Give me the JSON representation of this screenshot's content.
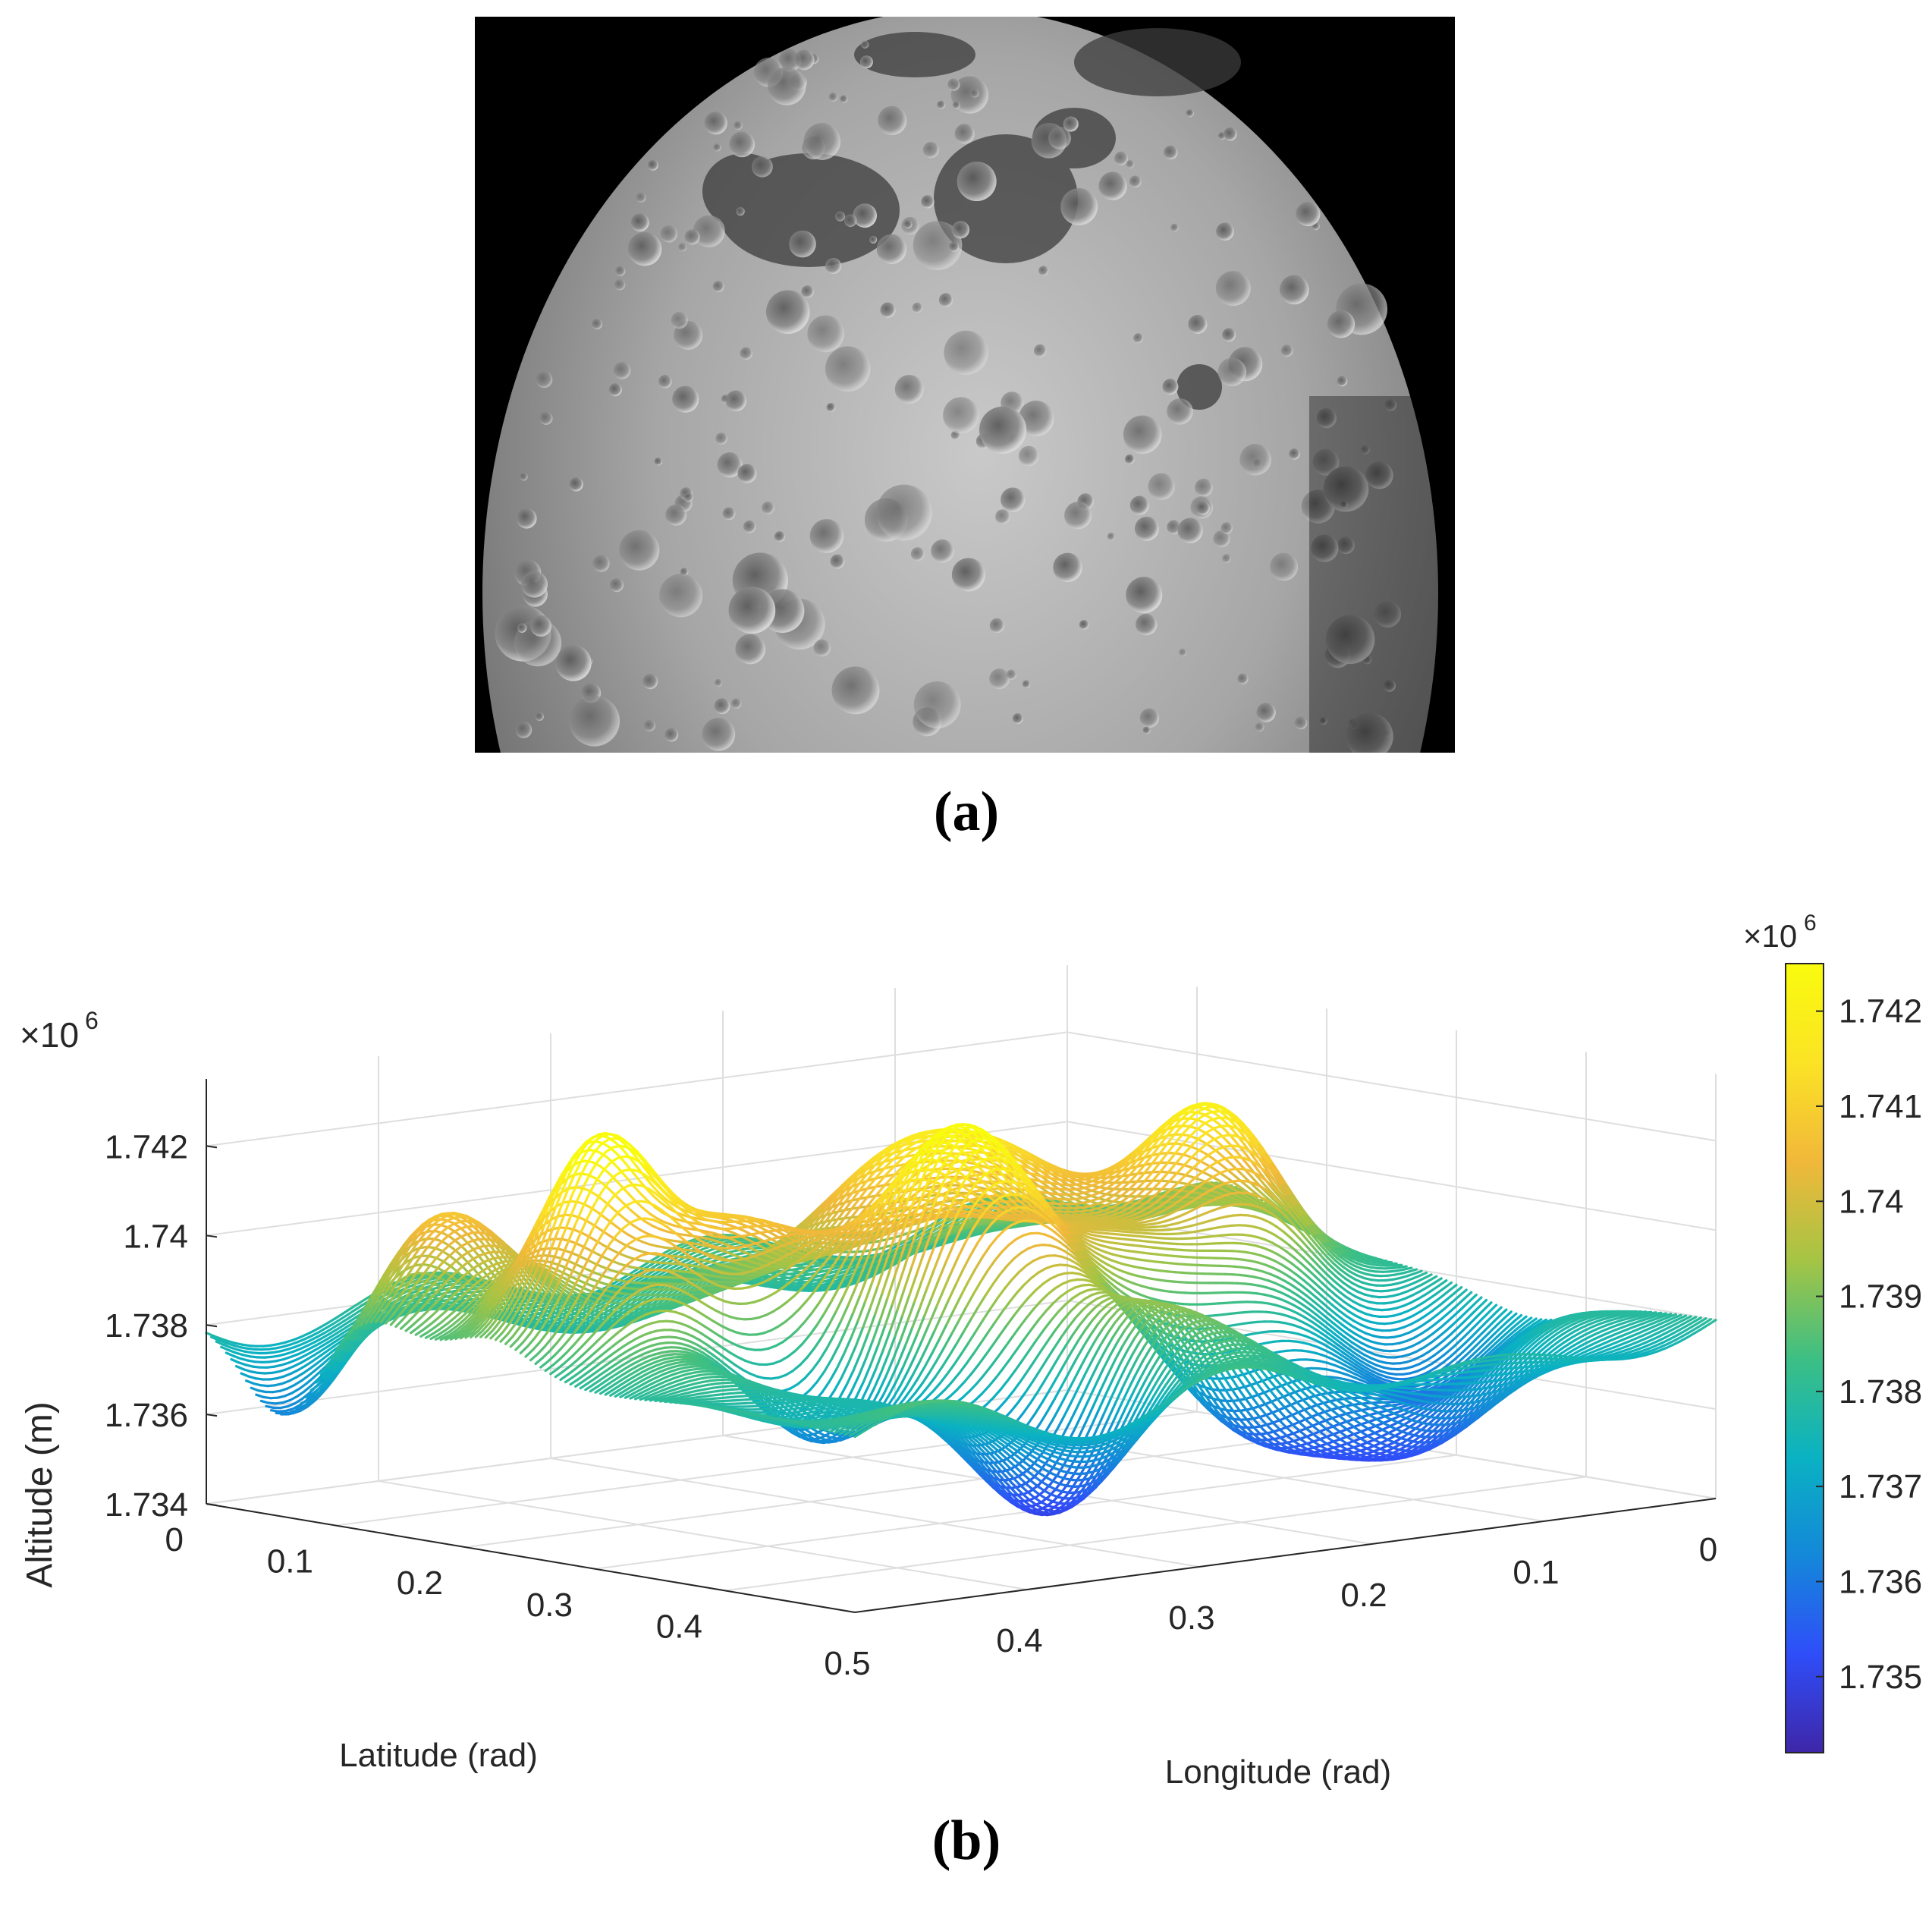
{
  "panel_a": {
    "caption": "(a)",
    "image": "lunar-surface-photograph"
  },
  "panel_b": {
    "caption": "(b)"
  },
  "colors": {
    "colormap": [
      "#3e26a8",
      "#2f4ef9",
      "#1488d9",
      "#0ab2c2",
      "#3dbf84",
      "#a6c444",
      "#f1b83a",
      "#fbe325",
      "#f9fb0e"
    ],
    "grid": "#dedede",
    "axis": "#262626",
    "background": "#ffffff"
  },
  "chart_data": {
    "type": "surface",
    "title": "",
    "xlabel": "Longitude (rad)",
    "ylabel": "Latitude (rad)",
    "zlabel": "Altitude (m)",
    "z_exponent_label": "×10",
    "z_exponent_power": "6",
    "xlim": [
      0,
      0.5
    ],
    "ylim": [
      0,
      0.5
    ],
    "zlim": [
      1734000.0,
      1743500.0
    ],
    "x_ticks": [
      "0",
      "0.1",
      "0.2",
      "0.3",
      "0.4",
      "0.5"
    ],
    "y_ticks": [
      "0",
      "0.1",
      "0.2",
      "0.3",
      "0.4"
    ],
    "z_ticks": [
      "1.734",
      "1.736",
      "1.738",
      "1.74",
      "1.742"
    ],
    "colorbar": {
      "exponent_label": "×10",
      "exponent_power": "6",
      "ticks": [
        "1.742",
        "1.741",
        "1.74",
        "1.739",
        "1.738",
        "1.737",
        "1.736",
        "1.735"
      ],
      "range": [
        1734200.0,
        1742500.0
      ]
    },
    "grid": true,
    "surface": {
      "base_altitude": 1738000.0,
      "features": [
        {
          "longitude": 0.49,
          "latitude": 0.06,
          "delta": -2000,
          "width": 0.03
        },
        {
          "longitude": 0.45,
          "latitude": 0.12,
          "delta": 2500,
          "width": 0.035
        },
        {
          "longitude": 0.44,
          "latitude": 0.22,
          "delta": 5000,
          "width": 0.03
        },
        {
          "longitude": 0.36,
          "latitude": 0.24,
          "delta": 2600,
          "width": 0.04
        },
        {
          "longitude": 0.37,
          "latitude": 0.3,
          "delta": -2000,
          "width": 0.035
        },
        {
          "longitude": 0.29,
          "latitude": 0.3,
          "delta": 4000,
          "width": 0.035
        },
        {
          "longitude": 0.25,
          "latitude": 0.19,
          "delta": 3000,
          "width": 0.04
        },
        {
          "longitude": 0.33,
          "latitude": 0.42,
          "delta": -3500,
          "width": 0.04
        },
        {
          "longitude": 0.26,
          "latitude": 0.4,
          "delta": 2500,
          "width": 0.04
        },
        {
          "longitude": 0.19,
          "latitude": 0.38,
          "delta": -3000,
          "width": 0.04
        },
        {
          "longitude": 0.2,
          "latitude": 0.3,
          "delta": 2500,
          "width": 0.04
        },
        {
          "longitude": 0.17,
          "latitude": 0.18,
          "delta": 2500,
          "width": 0.04
        },
        {
          "longitude": 0.1,
          "latitude": 0.24,
          "delta": 4000,
          "width": 0.035
        },
        {
          "longitude": 0.06,
          "latitude": 0.36,
          "delta": -2000,
          "width": 0.04
        },
        {
          "longitude": 0.03,
          "latitude": 0.12,
          "delta": 1500,
          "width": 0.045
        },
        {
          "longitude": 0.12,
          "latitude": 0.44,
          "delta": -2000,
          "width": 0.04
        }
      ]
    }
  }
}
